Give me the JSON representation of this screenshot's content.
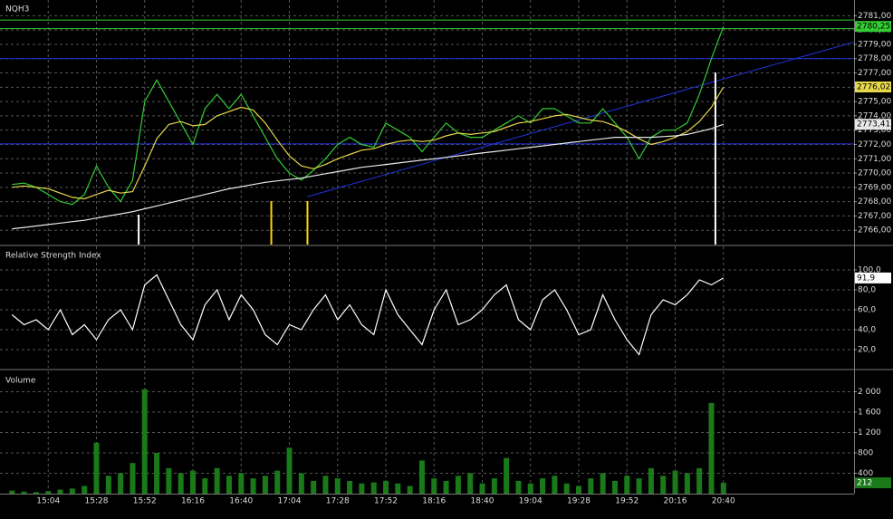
{
  "chart_data": [
    {
      "type": "line",
      "title": "NQH3",
      "x": [
        "14:46",
        "14:52",
        "14:58",
        "15:04",
        "15:10",
        "15:16",
        "15:22",
        "15:28",
        "15:34",
        "15:40",
        "15:46",
        "15:52",
        "15:58",
        "16:04",
        "16:10",
        "16:16",
        "16:22",
        "16:28",
        "16:34",
        "16:40",
        "16:46",
        "16:52",
        "16:58",
        "17:04",
        "17:10",
        "17:16",
        "17:22",
        "17:28",
        "17:34",
        "17:40",
        "17:46",
        "17:52",
        "17:58",
        "18:04",
        "18:10",
        "18:16",
        "18:22",
        "18:28",
        "18:34",
        "18:40",
        "18:46",
        "18:52",
        "18:58",
        "19:04",
        "19:10",
        "19:16",
        "19:22",
        "19:28",
        "19:34",
        "19:40",
        "19:46",
        "19:52",
        "19:58",
        "20:04",
        "20:10",
        "20:16",
        "20:22",
        "20:28",
        "20:34",
        "20:40"
      ],
      "xlim": [
        "14:40",
        "21:45"
      ],
      "xticks": [
        "15:04",
        "15:28",
        "15:52",
        "16:16",
        "16:40",
        "17:04",
        "17:28",
        "17:52",
        "18:16",
        "18:40",
        "19:04",
        "19:28",
        "19:52",
        "20:16",
        "20:40"
      ],
      "ylim": [
        2765,
        2782.1
      ],
      "yticks": [
        {
          "value": 2766,
          "label": "2766,00"
        },
        {
          "value": 2767,
          "label": "2767,00"
        },
        {
          "value": 2768,
          "label": "2768,00"
        },
        {
          "value": 2769,
          "label": "2769,00"
        },
        {
          "value": 2770,
          "label": "2770,00"
        },
        {
          "value": 2771,
          "label": "2771,00"
        },
        {
          "value": 2772,
          "label": "2772,00"
        },
        {
          "value": 2773,
          "label": "2773,00"
        },
        {
          "value": 2774,
          "label": "2774,00"
        },
        {
          "value": 2775,
          "label": "2775,00"
        },
        {
          "value": 2776,
          "label": "2776,00"
        },
        {
          "value": 2777,
          "label": "2777,00"
        },
        {
          "value": 2778,
          "label": "2778,00"
        },
        {
          "value": 2779,
          "label": "2779,00"
        },
        {
          "value": 2780,
          "label": "2780,00"
        },
        {
          "value": 2781,
          "label": "2781,00"
        }
      ],
      "grid": true,
      "series": [
        {
          "color": "#33cc33",
          "values": [
            2769.2,
            2769.3,
            2769,
            2768.5,
            2768,
            2767.8,
            2768.5,
            2770.5,
            2769,
            2768,
            2769.5,
            2775,
            2776.5,
            2775,
            2773.5,
            2772,
            2774.5,
            2775.5,
            2774.5,
            2775.5,
            2774,
            2772.5,
            2771,
            2770,
            2769.5,
            2770.2,
            2771,
            2772,
            2772.5,
            2772,
            2771.8,
            2773.5,
            2773,
            2772.5,
            2771.5,
            2772.5,
            2773.5,
            2772.8,
            2772.5,
            2772.5,
            2773,
            2773.5,
            2774,
            2773.5,
            2774.5,
            2774.5,
            2774,
            2773.5,
            2773.5,
            2774.5,
            2773.5,
            2772.5,
            2771,
            2772.5,
            2773,
            2773,
            2773.5,
            2775.5,
            2778,
            2780.25
          ],
          "last_label": "2780,25"
        },
        {
          "color": "#e6d84a",
          "values": [
            2769,
            2769.1,
            2769,
            2768.9,
            2768.6,
            2768.3,
            2768.2,
            2768.5,
            2768.8,
            2768.6,
            2768.7,
            2770.5,
            2772.4,
            2773.4,
            2773.6,
            2773.3,
            2773.4,
            2774,
            2774.3,
            2774.6,
            2774.4,
            2773.5,
            2772.3,
            2771.2,
            2770.5,
            2770.3,
            2770.6,
            2771,
            2771.3,
            2771.6,
            2771.7,
            2772,
            2772.2,
            2772.3,
            2772.2,
            2772.3,
            2772.6,
            2772.8,
            2772.7,
            2772.8,
            2772.9,
            2773.2,
            2773.5,
            2773.6,
            2773.8,
            2774,
            2774.1,
            2773.9,
            2773.7,
            2773.6,
            2773.3,
            2772.9,
            2772.4,
            2772,
            2772.2,
            2772.5,
            2772.9,
            2773.6,
            2774.6,
            2776.02
          ],
          "last_label": "2776,02"
        },
        {
          "color": "#e8e8e8",
          "values": [
            2766.1,
            2766.2,
            2766.3,
            2766.4,
            2766.5,
            2766.6,
            2766.7,
            2766.85,
            2767,
            2767.15,
            2767.3,
            2767.5,
            2767.7,
            2767.9,
            2768.1,
            2768.3,
            2768.5,
            2768.7,
            2768.9,
            2769.05,
            2769.2,
            2769.35,
            2769.45,
            2769.55,
            2769.65,
            2769.8,
            2769.95,
            2770.1,
            2770.25,
            2770.4,
            2770.5,
            2770.6,
            2770.7,
            2770.8,
            2770.9,
            2771,
            2771.1,
            2771.2,
            2771.3,
            2771.4,
            2771.5,
            2771.6,
            2771.7,
            2771.8,
            2771.9,
            2772,
            2772.1,
            2772.2,
            2772.3,
            2772.4,
            2772.5,
            2772.5,
            2772.5,
            2772.5,
            2772.55,
            2772.6,
            2772.7,
            2772.9,
            2773.1,
            2773.41
          ],
          "last_label": "2773,41"
        }
      ],
      "levels": [
        {
          "value": 2778,
          "color": "#2233dd"
        },
        {
          "value": 2772.04,
          "color": "#2233dd"
        },
        {
          "value": 2780.7,
          "color": "#33cc33"
        },
        {
          "value": 2780.1,
          "color": "#33cc33"
        }
      ],
      "trendline": {
        "x": [
          "17:13",
          "21:45"
        ],
        "y": [
          2768.35,
          2779.16
        ],
        "color": "#2233dd"
      },
      "markers": [
        {
          "x": "15:49",
          "from": 2767.09,
          "color": "#ffffff"
        },
        {
          "x": "16:55",
          "from": 2768.04,
          "color": "#ffd700"
        },
        {
          "x": "17:13",
          "from": 2768.04,
          "color": "#ffd700"
        },
        {
          "x": "20:36",
          "from": 2777.03,
          "color": "#ffffff"
        }
      ]
    },
    {
      "type": "line",
      "title": "Relative Strength Index",
      "ylim": [
        1.8,
        123.6
      ],
      "yticks": [
        {
          "value": 20,
          "label": "20,0"
        },
        {
          "value": 40,
          "label": "40,0"
        },
        {
          "value": 60,
          "label": "60,0"
        },
        {
          "value": 80,
          "label": "80,0"
        },
        {
          "value": 100,
          "label": "100,0"
        }
      ],
      "grid": true,
      "color": "#ffffff",
      "values": [
        55,
        45,
        50,
        40,
        60,
        35,
        45,
        30,
        50,
        60,
        40,
        85,
        95,
        70,
        45,
        30,
        65,
        80,
        50,
        75,
        60,
        35,
        25,
        45,
        40,
        60,
        75,
        50,
        65,
        45,
        35,
        80,
        55,
        40,
        25,
        60,
        80,
        45,
        50,
        60,
        75,
        85,
        50,
        40,
        70,
        80,
        60,
        35,
        40,
        75,
        50,
        30,
        15,
        55,
        70,
        65,
        75,
        90,
        85,
        91.9
      ],
      "last_label": "91,9"
    },
    {
      "type": "bar",
      "title": "Volume",
      "ylim": [
        0,
        2400
      ],
      "yticks": [
        400,
        800,
        {
          "value": 1200,
          "label": "1 200"
        },
        {
          "value": 1600,
          "label": "1 600"
        },
        {
          "value": 2000,
          "label": "2 000"
        }
      ],
      "grid": true,
      "color": "#1a7a1a",
      "values": [
        60,
        40,
        30,
        50,
        80,
        100,
        150,
        1000,
        350,
        400,
        600,
        2050,
        800,
        500,
        400,
        450,
        300,
        500,
        350,
        400,
        300,
        350,
        450,
        900,
        400,
        250,
        350,
        300,
        250,
        200,
        220,
        250,
        200,
        150,
        650,
        300,
        250,
        350,
        400,
        200,
        300,
        700,
        250,
        200,
        300,
        350,
        200,
        150,
        300,
        400,
        250,
        350,
        300,
        500,
        350,
        450,
        400,
        500,
        1780,
        212
      ],
      "last_label": "212"
    }
  ]
}
